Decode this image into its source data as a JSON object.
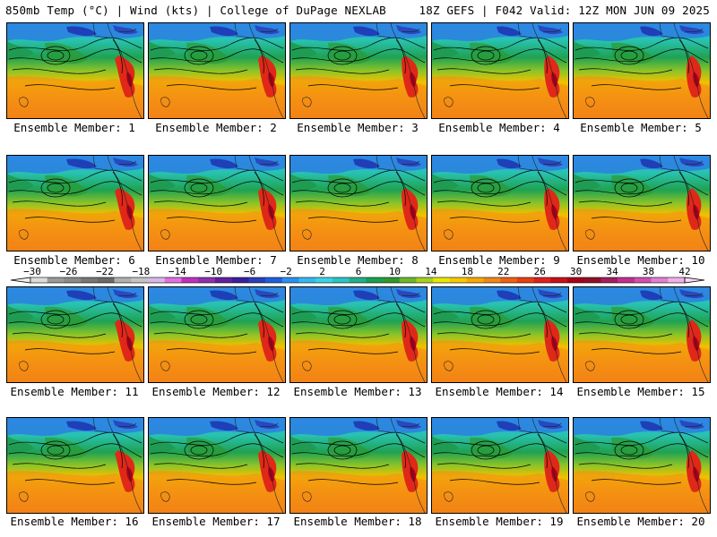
{
  "header": {
    "left": "850mb Temp (°C) | Wind (kts) | College of DuPage NEXLAB",
    "right": "18Z GEFS | F042 Valid: 12Z MON JUN 09 2025"
  },
  "panels": [
    {
      "label": "Ensemble Member: 1"
    },
    {
      "label": "Ensemble Member: 2"
    },
    {
      "label": "Ensemble Member: 3"
    },
    {
      "label": "Ensemble Member: 4"
    },
    {
      "label": "Ensemble Member: 5"
    },
    {
      "label": "Ensemble Member: 6"
    },
    {
      "label": "Ensemble Member: 7"
    },
    {
      "label": "Ensemble Member: 8"
    },
    {
      "label": "Ensemble Member: 9"
    },
    {
      "label": "Ensemble Member: 10"
    },
    {
      "label": "Ensemble Member: 11"
    },
    {
      "label": "Ensemble Member: 12"
    },
    {
      "label": "Ensemble Member: 13"
    },
    {
      "label": "Ensemble Member: 14"
    },
    {
      "label": "Ensemble Member: 15"
    },
    {
      "label": "Ensemble Member: 16"
    },
    {
      "label": "Ensemble Member: 17"
    },
    {
      "label": "Ensemble Member: 18"
    },
    {
      "label": "Ensemble Member: 19"
    },
    {
      "label": "Ensemble Member: 20"
    }
  ],
  "colorbar": {
    "tick_labels": [
      "-30",
      "-26",
      "-22",
      "-18",
      "-14",
      "-10",
      "-6",
      "-2",
      "2",
      "6",
      "10",
      "14",
      "18",
      "22",
      "26",
      "30",
      "34",
      "38",
      "42"
    ],
    "colors": [
      "#dcdcdc",
      "#9a9a9a",
      "#8a8a8a",
      "#777777",
      "#6a6a6a",
      "#b0b0b0",
      "#c4c4c4",
      "#d8b8e8",
      "#e070e0",
      "#c030c0",
      "#9030b0",
      "#6020a0",
      "#3b1f9c",
      "#2c3fb8",
      "#1e5fe0",
      "#2a8ff0",
      "#35b8f0",
      "#38d4e6",
      "#2cc4c4",
      "#20b08a",
      "#18a050",
      "#2e9a2e",
      "#6cb82a",
      "#a8d020",
      "#e8e800",
      "#f8c800",
      "#f8a800",
      "#f08818",
      "#f06010",
      "#e84010",
      "#e02020",
      "#c81018",
      "#a80018",
      "#901028",
      "#a02060",
      "#c03090",
      "#d050b0",
      "#e080d0",
      "#f0b0e8"
    ]
  }
}
